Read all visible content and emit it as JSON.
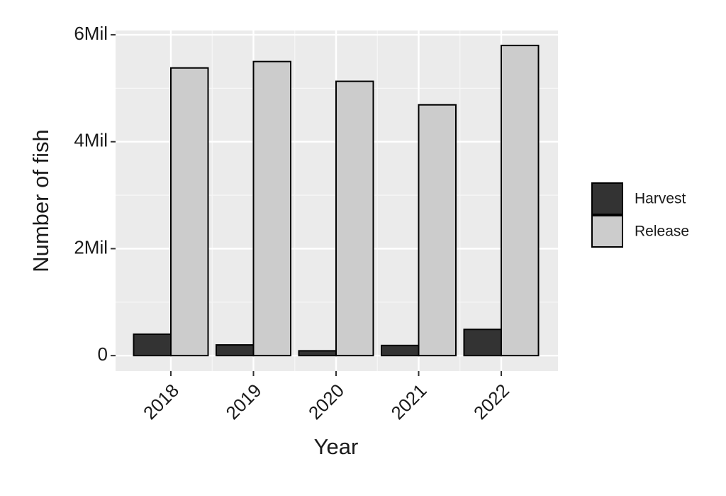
{
  "chart_data": {
    "type": "bar",
    "x_label": "Year",
    "y_label": "Number of fish",
    "categories": [
      "2018",
      "2019",
      "2020",
      "2021",
      "2022"
    ],
    "series": [
      {
        "name": "Harvest",
        "color": "#333333",
        "values": [
          400000,
          200000,
          90000,
          190000,
          490000
        ]
      },
      {
        "name": "Release",
        "color": "#cccccc",
        "values": [
          5380000,
          5500000,
          5130000,
          4690000,
          5800000
        ]
      }
    ],
    "ylim": [
      -290000,
      6080000
    ],
    "yticks": [
      0,
      {
        "value": 2000000,
        "label": "2Mil"
      },
      {
        "value": 4000000,
        "label": "4Mil"
      },
      {
        "value": 6000000,
        "label": "6Mil"
      }
    ],
    "grid": true,
    "legend": "right"
  }
}
